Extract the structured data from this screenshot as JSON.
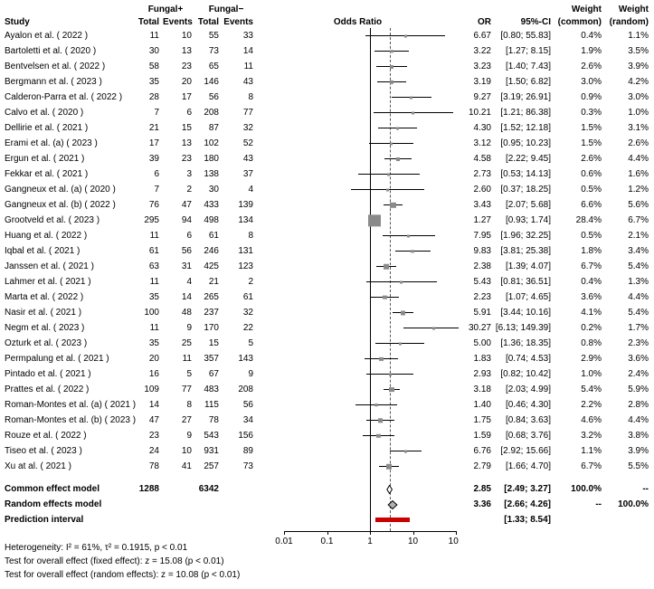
{
  "header": {
    "study": "Study",
    "fungal_pos": "Fungal+",
    "fungal_neg": "Fungal−",
    "total": "Total",
    "events": "Events",
    "odds_ratio": "Odds Ratio",
    "or": "OR",
    "ci": "95%-CI",
    "weight": "Weight",
    "weight_common": "(common)",
    "weight_random": "(random)"
  },
  "chart_data": {
    "type": "forest",
    "x_scale": "log10",
    "x_ticks": [
      0.01,
      0.1,
      1,
      10,
      100
    ],
    "x_range": [
      0.01,
      100
    ],
    "reference_line": 1,
    "pooled_estimate": 2.85,
    "colors": {
      "square": "#8a8a8a",
      "ci_line": "#000000",
      "diamond_common_fill": "#ffffff",
      "diamond_random_fill": "#b0b0b0",
      "diamond_stroke": "#000000",
      "prediction_bar": "#cc0000",
      "reference_line": "#000000",
      "pooled_line": "#555555"
    },
    "studies": [
      {
        "name": "Ayalon et al. ( 2022 )",
        "fungal_pos_total": 11,
        "fungal_pos_events": 10,
        "fungal_neg_total": 55,
        "fungal_neg_events": 33,
        "or": 6.67,
        "ci_lower": 0.8,
        "ci_upper": 55.83,
        "weight_common": 0.4,
        "weight_random": 1.1
      },
      {
        "name": "Bartoletti et al. ( 2020 )",
        "fungal_pos_total": 30,
        "fungal_pos_events": 13,
        "fungal_neg_total": 73,
        "fungal_neg_events": 14,
        "or": 3.22,
        "ci_lower": 1.27,
        "ci_upper": 8.15,
        "weight_common": 1.9,
        "weight_random": 3.5
      },
      {
        "name": "Bentvelsen et al. ( 2022 )",
        "fungal_pos_total": 58,
        "fungal_pos_events": 23,
        "fungal_neg_total": 65,
        "fungal_neg_events": 11,
        "or": 3.23,
        "ci_lower": 1.4,
        "ci_upper": 7.43,
        "weight_common": 2.6,
        "weight_random": 3.9
      },
      {
        "name": "Bergmann et al. ( 2023 )",
        "fungal_pos_total": 35,
        "fungal_pos_events": 20,
        "fungal_neg_total": 146,
        "fungal_neg_events": 43,
        "or": 3.19,
        "ci_lower": 1.5,
        "ci_upper": 6.82,
        "weight_common": 3.0,
        "weight_random": 4.2
      },
      {
        "name": "Calderon-Parra et al. ( 2022 )",
        "fungal_pos_total": 28,
        "fungal_pos_events": 17,
        "fungal_neg_total": 56,
        "fungal_neg_events": 8,
        "or": 9.27,
        "ci_lower": 3.19,
        "ci_upper": 26.91,
        "weight_common": 0.9,
        "weight_random": 3.0
      },
      {
        "name": "Calvo et al. ( 2020 )",
        "fungal_pos_total": 7,
        "fungal_pos_events": 6,
        "fungal_neg_total": 208,
        "fungal_neg_events": 77,
        "or": 10.21,
        "ci_lower": 1.21,
        "ci_upper": 86.38,
        "weight_common": 0.3,
        "weight_random": 1.0
      },
      {
        "name": "Dellirie et al. ( 2021 )",
        "fungal_pos_total": 21,
        "fungal_pos_events": 15,
        "fungal_neg_total": 87,
        "fungal_neg_events": 32,
        "or": 4.3,
        "ci_lower": 1.52,
        "ci_upper": 12.18,
        "weight_common": 1.5,
        "weight_random": 3.1
      },
      {
        "name": "Erami et al. (a) ( 2023 )",
        "fungal_pos_total": 17,
        "fungal_pos_events": 13,
        "fungal_neg_total": 102,
        "fungal_neg_events": 52,
        "or": 3.12,
        "ci_lower": 0.95,
        "ci_upper": 10.23,
        "weight_common": 1.5,
        "weight_random": 2.6
      },
      {
        "name": "Ergun et al. ( 2021 )",
        "fungal_pos_total": 39,
        "fungal_pos_events": 23,
        "fungal_neg_total": 180,
        "fungal_neg_events": 43,
        "or": 4.58,
        "ci_lower": 2.22,
        "ci_upper": 9.45,
        "weight_common": 2.6,
        "weight_random": 4.4
      },
      {
        "name": "Fekkar et al. ( 2021 )",
        "fungal_pos_total": 6,
        "fungal_pos_events": 3,
        "fungal_neg_total": 138,
        "fungal_neg_events": 37,
        "or": 2.73,
        "ci_lower": 0.53,
        "ci_upper": 14.13,
        "weight_common": 0.6,
        "weight_random": 1.6
      },
      {
        "name": "Gangneux et al. (a) ( 2020 )",
        "fungal_pos_total": 7,
        "fungal_pos_events": 2,
        "fungal_neg_total": 30,
        "fungal_neg_events": 4,
        "or": 2.6,
        "ci_lower": 0.37,
        "ci_upper": 18.25,
        "weight_common": 0.5,
        "weight_random": 1.2
      },
      {
        "name": "Gangneux et al. (b) ( 2022 )",
        "fungal_pos_total": 76,
        "fungal_pos_events": 47,
        "fungal_neg_total": 433,
        "fungal_neg_events": 139,
        "or": 3.43,
        "ci_lower": 2.07,
        "ci_upper": 5.68,
        "weight_common": 6.6,
        "weight_random": 5.6
      },
      {
        "name": "Grootveld et al. ( 2023 )",
        "fungal_pos_total": 295,
        "fungal_pos_events": 94,
        "fungal_neg_total": 498,
        "fungal_neg_events": 134,
        "or": 1.27,
        "ci_lower": 0.93,
        "ci_upper": 1.74,
        "weight_common": 28.4,
        "weight_random": 6.7
      },
      {
        "name": "Huang et al. ( 2022 )",
        "fungal_pos_total": 11,
        "fungal_pos_events": 6,
        "fungal_neg_total": 61,
        "fungal_neg_events": 8,
        "or": 7.95,
        "ci_lower": 1.96,
        "ci_upper": 32.25,
        "weight_common": 0.5,
        "weight_random": 2.1
      },
      {
        "name": "Iqbal et al. ( 2021 )",
        "fungal_pos_total": 61,
        "fungal_pos_events": 56,
        "fungal_neg_total": 246,
        "fungal_neg_events": 131,
        "or": 9.83,
        "ci_lower": 3.81,
        "ci_upper": 25.38,
        "weight_common": 1.8,
        "weight_random": 3.4
      },
      {
        "name": "Janssen et al. ( 2021 )",
        "fungal_pos_total": 63,
        "fungal_pos_events": 31,
        "fungal_neg_total": 425,
        "fungal_neg_events": 123,
        "or": 2.38,
        "ci_lower": 1.39,
        "ci_upper": 4.07,
        "weight_common": 6.7,
        "weight_random": 5.4
      },
      {
        "name": "Lahmer et al. ( 2021 )",
        "fungal_pos_total": 11,
        "fungal_pos_events": 4,
        "fungal_neg_total": 21,
        "fungal_neg_events": 2,
        "or": 5.43,
        "ci_lower": 0.81,
        "ci_upper": 36.51,
        "weight_common": 0.4,
        "weight_random": 1.3
      },
      {
        "name": "Marta et al. ( 2022 )",
        "fungal_pos_total": 35,
        "fungal_pos_events": 14,
        "fungal_neg_total": 265,
        "fungal_neg_events": 61,
        "or": 2.23,
        "ci_lower": 1.07,
        "ci_upper": 4.65,
        "weight_common": 3.6,
        "weight_random": 4.4
      },
      {
        "name": "Nasir et al. ( 2021 )",
        "fungal_pos_total": 100,
        "fungal_pos_events": 48,
        "fungal_neg_total": 237,
        "fungal_neg_events": 32,
        "or": 5.91,
        "ci_lower": 3.44,
        "ci_upper": 10.16,
        "weight_common": 4.1,
        "weight_random": 5.4
      },
      {
        "name": "Negm et al. ( 2023 )",
        "fungal_pos_total": 11,
        "fungal_pos_events": 9,
        "fungal_neg_total": 170,
        "fungal_neg_events": 22,
        "or": 30.27,
        "ci_lower": 6.13,
        "ci_upper": 149.39,
        "weight_common": 0.2,
        "weight_random": 1.7
      },
      {
        "name": "Ozturk et al. ( 2023 )",
        "fungal_pos_total": 35,
        "fungal_pos_events": 25,
        "fungal_neg_total": 15,
        "fungal_neg_events": 5,
        "or": 5.0,
        "ci_lower": 1.36,
        "ci_upper": 18.35,
        "weight_common": 0.8,
        "weight_random": 2.3
      },
      {
        "name": "Permpalung et al. ( 2021 )",
        "fungal_pos_total": 20,
        "fungal_pos_events": 11,
        "fungal_neg_total": 357,
        "fungal_neg_events": 143,
        "or": 1.83,
        "ci_lower": 0.74,
        "ci_upper": 4.53,
        "weight_common": 2.9,
        "weight_random": 3.6
      },
      {
        "name": "Pintado et al. ( 2021 )",
        "fungal_pos_total": 16,
        "fungal_pos_events": 5,
        "fungal_neg_total": 67,
        "fungal_neg_events": 9,
        "or": 2.93,
        "ci_lower": 0.82,
        "ci_upper": 10.42,
        "weight_common": 1.0,
        "weight_random": 2.4
      },
      {
        "name": "Prattes et al. ( 2022 )",
        "fungal_pos_total": 109,
        "fungal_pos_events": 77,
        "fungal_neg_total": 483,
        "fungal_neg_events": 208,
        "or": 3.18,
        "ci_lower": 2.03,
        "ci_upper": 4.99,
        "weight_common": 5.4,
        "weight_random": 5.9
      },
      {
        "name": "Roman-Montes et al. (a) ( 2021 )",
        "fungal_pos_total": 14,
        "fungal_pos_events": 8,
        "fungal_neg_total": 115,
        "fungal_neg_events": 56,
        "or": 1.4,
        "ci_lower": 0.46,
        "ci_upper": 4.3,
        "weight_common": 2.2,
        "weight_random": 2.8
      },
      {
        "name": "Roman-Montes et al. (b) ( 2023 )",
        "fungal_pos_total": 47,
        "fungal_pos_events": 27,
        "fungal_neg_total": 78,
        "fungal_neg_events": 34,
        "or": 1.75,
        "ci_lower": 0.84,
        "ci_upper": 3.63,
        "weight_common": 4.6,
        "weight_random": 4.4
      },
      {
        "name": "Rouze et al. ( 2022 )",
        "fungal_pos_total": 23,
        "fungal_pos_events": 9,
        "fungal_neg_total": 543,
        "fungal_neg_events": 156,
        "or": 1.59,
        "ci_lower": 0.68,
        "ci_upper": 3.76,
        "weight_common": 3.2,
        "weight_random": 3.8
      },
      {
        "name": "Tiseo et al. ( 2023 )",
        "fungal_pos_total": 24,
        "fungal_pos_events": 10,
        "fungal_neg_total": 931,
        "fungal_neg_events": 89,
        "or": 6.76,
        "ci_lower": 2.92,
        "ci_upper": 15.66,
        "weight_common": 1.1,
        "weight_random": 3.9
      },
      {
        "name": "Xu at al. ( 2021 )",
        "fungal_pos_total": 78,
        "fungal_pos_events": 41,
        "fungal_neg_total": 257,
        "fungal_neg_events": 73,
        "or": 2.79,
        "ci_lower": 1.66,
        "ci_upper": 4.7,
        "weight_common": 6.7,
        "weight_random": 5.5
      }
    ],
    "summaries": [
      {
        "label": "Common effect model",
        "kind": "common",
        "fungal_pos_total": 1288,
        "fungal_neg_total": 6342,
        "or": 2.85,
        "ci_lower": 2.49,
        "ci_upper": 3.27,
        "weight_common": 100.0,
        "weight_random": "--"
      },
      {
        "label": "Random effects model",
        "kind": "random",
        "or": 3.36,
        "ci_lower": 2.66,
        "ci_upper": 4.26,
        "weight_common": "--",
        "weight_random": 100.0
      }
    ],
    "prediction": {
      "label": "Prediction interval",
      "ci_lower": 1.33,
      "ci_upper": 8.54
    }
  },
  "footer": {
    "heterogeneity": "Heterogeneity: I² = 61%, τ² = 0.1915, p < 0.01",
    "fixed_test": "Test for overall effect (fixed effect): z = 15.08 (p < 0.01)",
    "random_test": "Test for overall effect (random effects): z = 10.08 (p < 0.01)"
  }
}
